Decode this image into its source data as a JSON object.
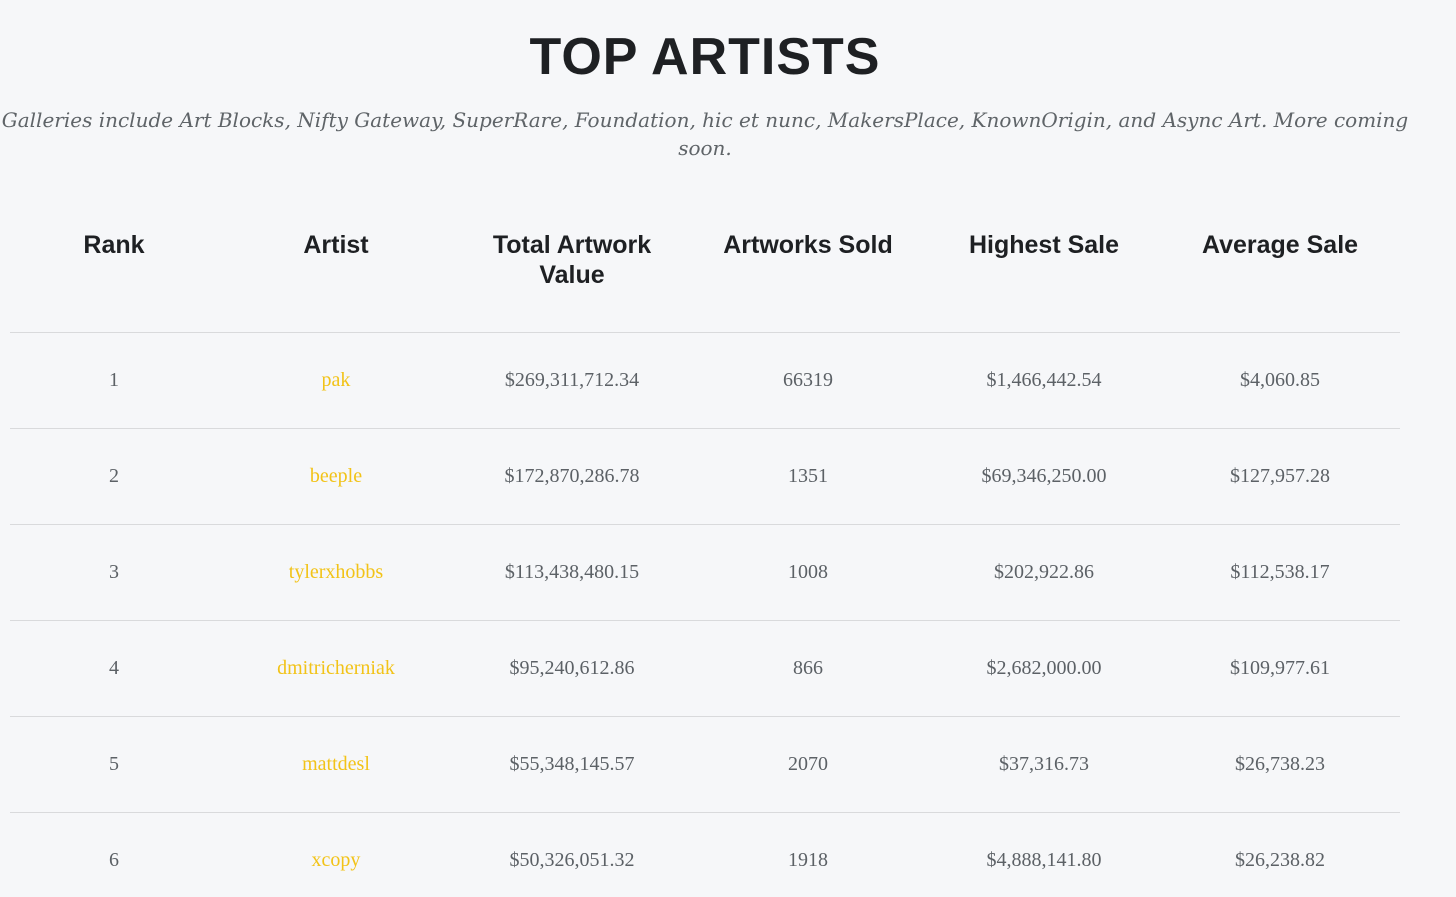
{
  "page": {
    "title": "TOP ARTISTS",
    "subtitle": "Galleries include Art Blocks, Nifty Gateway, SuperRare, Foundation, hic et nunc, MakersPlace, KnownOrigin, and Async Art. More coming soon."
  },
  "table": {
    "headers": [
      "Rank",
      "Artist",
      "Total Artwork Value",
      "Artworks Sold",
      "Highest Sale",
      "Average Sale"
    ],
    "rows": [
      {
        "rank": "1",
        "artist": "pak",
        "total": "$269,311,712.34",
        "sold": "66319",
        "highest": "$1,466,442.54",
        "average": "$4,060.85"
      },
      {
        "rank": "2",
        "artist": "beeple",
        "total": "$172,870,286.78",
        "sold": "1351",
        "highest": "$69,346,250.00",
        "average": "$127,957.28"
      },
      {
        "rank": "3",
        "artist": "tylerxhobbs",
        "total": "$113,438,480.15",
        "sold": "1008",
        "highest": "$202,922.86",
        "average": "$112,538.17"
      },
      {
        "rank": "4",
        "artist": "dmitricherniak",
        "total": "$95,240,612.86",
        "sold": "866",
        "highest": "$2,682,000.00",
        "average": "$109,977.61"
      },
      {
        "rank": "5",
        "artist": "mattdesl",
        "total": "$55,348,145.57",
        "sold": "2070",
        "highest": "$37,316.73",
        "average": "$26,738.23"
      },
      {
        "rank": "6",
        "artist": "xcopy",
        "total": "$50,326,051.32",
        "sold": "1918",
        "highest": "$4,888,141.80",
        "average": "$26,238.82"
      }
    ]
  },
  "colors": {
    "background": "#f6f7f9",
    "heading": "#1e2023",
    "body_text": "#5c6166",
    "artist_link": "#f2c318",
    "divider": "#d9dadc"
  }
}
